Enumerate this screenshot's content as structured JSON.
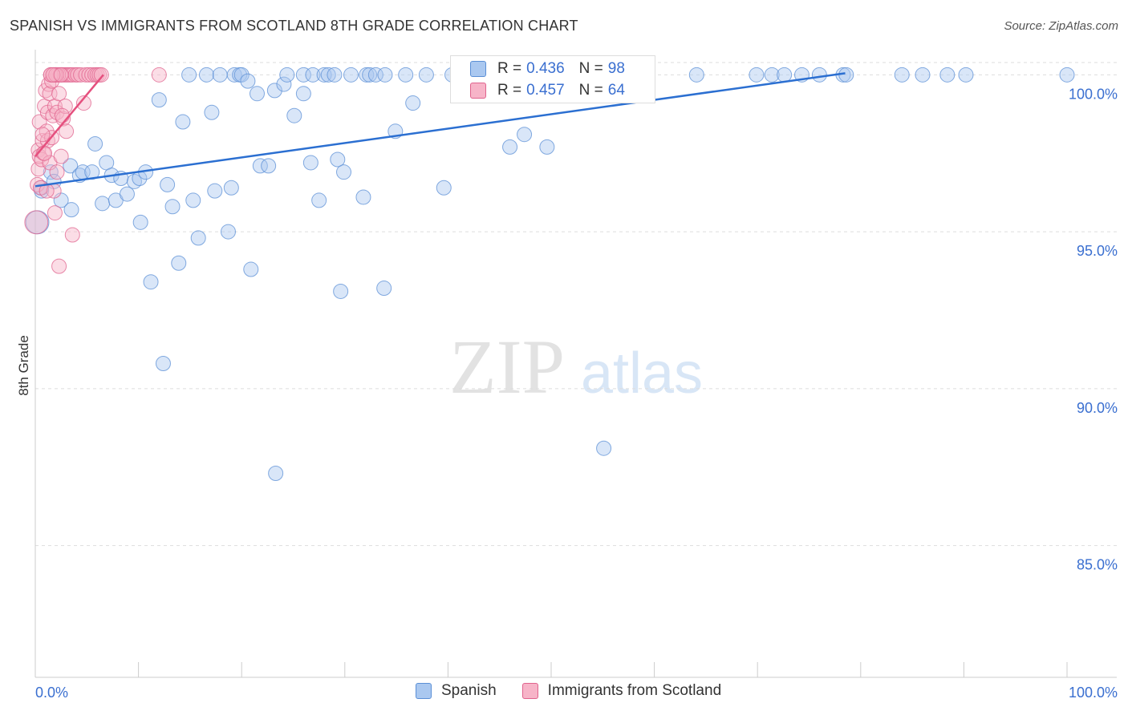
{
  "header": {
    "title": "SPANISH VS IMMIGRANTS FROM SCOTLAND 8TH GRADE CORRELATION CHART",
    "source": "Source: ZipAtlas.com"
  },
  "watermark": {
    "zip": "ZIP",
    "atlas": "atlas"
  },
  "stats_box": {
    "rows": [
      {
        "r_label": "R =",
        "r_value": "0.436",
        "n_label": "N =",
        "n_value": "98"
      },
      {
        "r_label": "R =",
        "r_value": "0.457",
        "n_label": "N =",
        "n_value": "64"
      }
    ]
  },
  "legend": {
    "items": [
      "Spanish",
      "Immigrants from Scotland"
    ]
  },
  "colors": {
    "blue_fill": "#aac8f0",
    "blue_stroke": "#5b8fd6",
    "blue_line": "#2b6fd1",
    "pink_fill": "#f7b4c8",
    "pink_stroke": "#e0638d",
    "pink_line": "#e5507e",
    "accent_text": "#3a6fd0",
    "grid": "#dddddd"
  },
  "chart_data": {
    "type": "scatter",
    "title": "SPANISH VS IMMIGRANTS FROM SCOTLAND 8TH GRADE CORRELATION CHART",
    "xlabel": "",
    "ylabel": "8th Grade",
    "xlim": [
      0,
      100
    ],
    "ylim": [
      80.8,
      100.8
    ],
    "x_tick_labels": [
      "0.0%",
      "100.0%"
    ],
    "y_ticks": [
      {
        "value": 85,
        "label": "85.0%"
      },
      {
        "value": 90,
        "label": "90.0%"
      },
      {
        "value": 95,
        "label": "95.0%"
      },
      {
        "value": 100,
        "label": "100.0%"
      }
    ],
    "grid": true,
    "legend_position": "bottom-center",
    "series": [
      {
        "name": "Spanish",
        "r": 0.436,
        "n": 98,
        "trend": {
          "x": [
            0,
            78.5
          ],
          "y": [
            96.45,
            100.05
          ]
        },
        "points": [
          [
            0.2,
            95.3,
            1.6
          ],
          [
            0.6,
            96.3,
            1
          ],
          [
            0.6,
            96.4,
            1
          ],
          [
            1.5,
            96.9,
            1
          ],
          [
            1.8,
            96.6,
            1
          ],
          [
            2.5,
            96.0,
            1
          ],
          [
            3.5,
            95.7,
            1
          ],
          [
            3.4,
            97.1,
            1
          ],
          [
            4.3,
            96.8,
            1
          ],
          [
            4.6,
            96.9,
            1
          ],
          [
            5.5,
            96.9,
            1
          ],
          [
            5.8,
            97.8,
            1
          ],
          [
            6.5,
            95.9,
            1
          ],
          [
            6.9,
            97.2,
            1
          ],
          [
            7.4,
            96.8,
            1
          ],
          [
            7.8,
            96.0,
            1
          ],
          [
            8.3,
            96.7,
            1
          ],
          [
            8.9,
            96.2,
            1
          ],
          [
            9.6,
            96.6,
            1
          ],
          [
            10.1,
            96.7,
            1
          ],
          [
            10.7,
            96.9,
            1
          ],
          [
            10.2,
            95.3,
            1
          ],
          [
            11.2,
            93.4,
            1
          ],
          [
            12.0,
            99.2,
            1
          ],
          [
            12.4,
            90.8,
            1
          ],
          [
            12.8,
            96.5,
            1
          ],
          [
            13.3,
            95.8,
            1
          ],
          [
            13.9,
            94.0,
            1
          ],
          [
            14.3,
            98.5,
            1
          ],
          [
            14.9,
            100.0,
            1
          ],
          [
            15.3,
            96.0,
            1
          ],
          [
            15.8,
            94.8,
            1
          ],
          [
            16.6,
            100.0,
            1
          ],
          [
            17.1,
            98.8,
            1
          ],
          [
            17.4,
            96.3,
            1
          ],
          [
            17.9,
            100.0,
            1
          ],
          [
            18.7,
            95.0,
            1
          ],
          [
            19.0,
            96.4,
            1
          ],
          [
            19.3,
            100.0,
            1
          ],
          [
            19.8,
            100.0,
            1
          ],
          [
            20.0,
            100.0,
            1
          ],
          [
            20.6,
            99.8,
            1
          ],
          [
            20.9,
            93.8,
            1
          ],
          [
            21.5,
            99.4,
            1
          ],
          [
            21.8,
            97.1,
            1
          ],
          [
            22.6,
            97.1,
            1
          ],
          [
            23.2,
            99.5,
            1
          ],
          [
            23.3,
            87.3,
            1
          ],
          [
            24.1,
            99.7,
            1
          ],
          [
            24.4,
            100.0,
            1
          ],
          [
            25.1,
            98.7,
            1
          ],
          [
            26.0,
            100.0,
            1
          ],
          [
            26.0,
            99.4,
            1
          ],
          [
            26.7,
            97.2,
            1
          ],
          [
            26.9,
            100.0,
            1
          ],
          [
            27.5,
            96.0,
            1
          ],
          [
            28.0,
            100.0,
            1
          ],
          [
            28.4,
            100.0,
            1
          ],
          [
            29.0,
            100.0,
            1
          ],
          [
            29.3,
            97.3,
            1
          ],
          [
            29.6,
            93.1,
            1
          ],
          [
            29.9,
            96.9,
            1
          ],
          [
            30.6,
            100.0,
            1
          ],
          [
            31.8,
            96.1,
            1
          ],
          [
            32.1,
            100.0,
            1
          ],
          [
            32.4,
            100.0,
            1
          ],
          [
            33.0,
            100.0,
            1
          ],
          [
            33.9,
            100.0,
            1
          ],
          [
            33.8,
            93.2,
            1
          ],
          [
            34.9,
            98.2,
            1
          ],
          [
            35.9,
            100.0,
            1
          ],
          [
            36.6,
            99.1,
            1
          ],
          [
            37.9,
            100.0,
            1
          ],
          [
            39.6,
            96.4,
            1
          ],
          [
            40.4,
            100.0,
            1
          ],
          [
            41.8,
            100.0,
            1
          ],
          [
            43.0,
            100.0,
            1
          ],
          [
            44.0,
            100.0,
            1
          ],
          [
            44.9,
            100.0,
            1
          ],
          [
            47.4,
            98.1,
            1
          ],
          [
            49.6,
            97.7,
            1
          ],
          [
            52.5,
            100.0,
            1
          ],
          [
            55.1,
            88.1,
            1
          ],
          [
            55.3,
            100.0,
            1
          ],
          [
            64.1,
            100.0,
            1
          ],
          [
            69.9,
            100.0,
            1
          ],
          [
            71.4,
            100.0,
            1
          ],
          [
            72.6,
            100.0,
            1
          ],
          [
            74.3,
            100.0,
            1
          ],
          [
            76.0,
            100.0,
            1
          ],
          [
            78.3,
            100.0,
            1
          ],
          [
            78.6,
            100.0,
            1
          ],
          [
            84.0,
            100.0,
            1
          ],
          [
            86.0,
            100.0,
            1
          ],
          [
            88.4,
            100.0,
            1
          ],
          [
            90.2,
            100.0,
            1
          ],
          [
            100.0,
            100.0,
            1
          ],
          [
            46.0,
            97.7,
            1
          ]
        ]
      },
      {
        "name": "Immigrants from Scotland",
        "r": 0.457,
        "n": 64,
        "trend": {
          "x": [
            0,
            6.6
          ],
          "y": [
            97.4,
            100.0
          ]
        },
        "points": [
          [
            0.1,
            95.3,
            1.6
          ],
          [
            0.2,
            96.5,
            1
          ],
          [
            0.3,
            97.0,
            1
          ],
          [
            0.3,
            97.6,
            1
          ],
          [
            0.4,
            97.4,
            1
          ],
          [
            0.4,
            98.5,
            1
          ],
          [
            0.5,
            96.4,
            1
          ],
          [
            0.6,
            97.3,
            1
          ],
          [
            0.7,
            97.9,
            1
          ],
          [
            0.8,
            97.5,
            1
          ],
          [
            0.9,
            99.0,
            1
          ],
          [
            1.0,
            99.5,
            1
          ],
          [
            1.1,
            98.2,
            1
          ],
          [
            1.2,
            98.8,
            1
          ],
          [
            1.2,
            97.9,
            1
          ],
          [
            1.3,
            99.7,
            1
          ],
          [
            1.4,
            97.2,
            1
          ],
          [
            1.4,
            99.4,
            1
          ],
          [
            1.5,
            100.0,
            1
          ],
          [
            1.6,
            98.0,
            1
          ],
          [
            1.6,
            99.8,
            1
          ],
          [
            1.7,
            98.7,
            1
          ],
          [
            1.8,
            96.3,
            1
          ],
          [
            1.8,
            100.0,
            1
          ],
          [
            1.9,
            95.6,
            1
          ],
          [
            1.9,
            99.0,
            1
          ],
          [
            2.0,
            100.0,
            1
          ],
          [
            2.1,
            96.9,
            1
          ],
          [
            2.1,
            98.8,
            1
          ],
          [
            2.2,
            100.0,
            1
          ],
          [
            2.3,
            99.4,
            1
          ],
          [
            2.3,
            93.9,
            1
          ],
          [
            2.4,
            100.0,
            1
          ],
          [
            2.5,
            97.4,
            1
          ],
          [
            2.6,
            100.0,
            1
          ],
          [
            2.7,
            98.6,
            1
          ],
          [
            2.8,
            100.0,
            1
          ],
          [
            2.9,
            99.0,
            1
          ],
          [
            3.0,
            100.0,
            1
          ],
          [
            3.0,
            98.2,
            1
          ],
          [
            3.2,
            100.0,
            1
          ],
          [
            3.4,
            100.0,
            1
          ],
          [
            3.6,
            100.0,
            1
          ],
          [
            3.6,
            94.9,
            1
          ],
          [
            3.9,
            100.0,
            1
          ],
          [
            4.1,
            100.0,
            1
          ],
          [
            4.4,
            100.0,
            1
          ],
          [
            4.7,
            99.1,
            1
          ],
          [
            4.9,
            100.0,
            1
          ],
          [
            5.2,
            100.0,
            1
          ],
          [
            5.5,
            100.0,
            1
          ],
          [
            5.8,
            100.0,
            1
          ],
          [
            6.0,
            100.0,
            1
          ],
          [
            6.2,
            100.0,
            1
          ],
          [
            6.4,
            100.0,
            1
          ],
          [
            12.0,
            100.0,
            1
          ],
          [
            1.5,
            100.0,
            1
          ],
          [
            2.0,
            100.0,
            1
          ],
          [
            2.6,
            98.7,
            1
          ],
          [
            0.9,
            97.5,
            1
          ],
          [
            1.1,
            96.3,
            1
          ],
          [
            1.7,
            100.0,
            1
          ],
          [
            2.5,
            100.0,
            1
          ],
          [
            0.7,
            98.1,
            1
          ]
        ]
      }
    ]
  }
}
